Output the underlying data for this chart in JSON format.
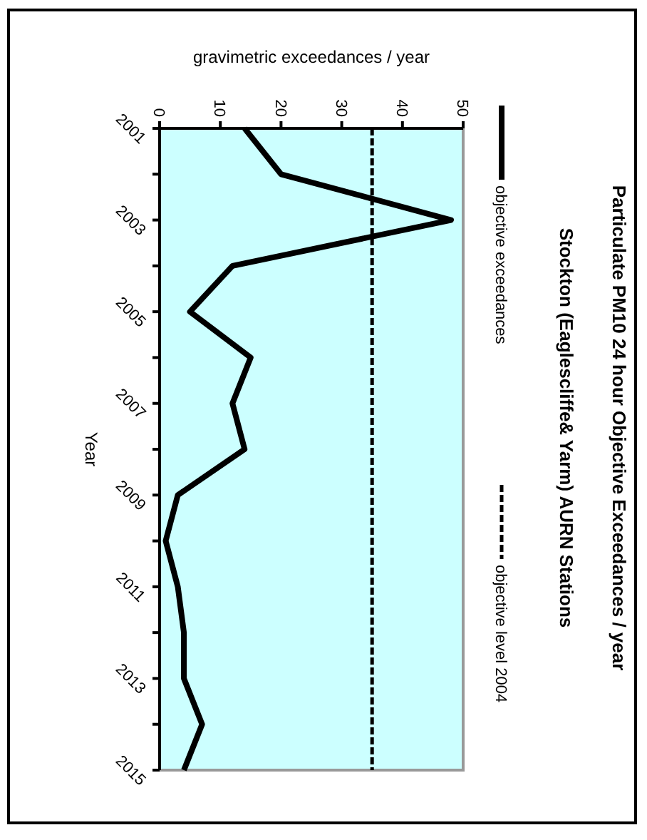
{
  "chart_data": {
    "type": "line",
    "orientation": "horizontal",
    "title": "Particulate PM10 24 hour Objective Exceedances / year",
    "subtitle": "Stockton (Eaglescliffe& Yarm) AURN Stations",
    "xlabel": "gravimetric exceedances / year",
    "ylabel": "Year",
    "x": [
      2001,
      2002,
      2003,
      2004,
      2005,
      2006,
      2007,
      2008,
      2009,
      2010,
      2011,
      2012,
      2013,
      2014,
      2015
    ],
    "series": [
      {
        "name": "objective exceedances",
        "color": "#000000",
        "values": [
          14,
          20,
          48,
          12,
          5,
          15,
          12,
          14,
          3,
          1,
          3,
          4,
          4,
          7,
          4
        ]
      },
      {
        "name": "objective level 2004",
        "color": "#000000",
        "line_style": "dashed",
        "values": [
          35,
          35,
          35,
          35,
          35,
          35,
          35,
          35,
          35,
          35,
          35,
          35,
          35,
          35,
          35
        ]
      }
    ],
    "ylim": [
      2015,
      2001
    ],
    "yticks": [
      2001,
      {
        "value": 2002,
        "label": null
      },
      2003,
      {
        "value": 2004,
        "label": null
      },
      2005,
      {
        "value": 2006,
        "label": null
      },
      2007,
      {
        "value": 2008,
        "label": null
      },
      2009,
      {
        "value": 2010,
        "label": null
      },
      2011,
      {
        "value": 2012,
        "label": null
      },
      2013,
      {
        "value": 2014,
        "label": null
      },
      2015
    ],
    "xlim": [
      0,
      50
    ],
    "xticks": [
      0,
      10,
      20,
      30,
      40,
      50
    ],
    "legend": "right",
    "marker": "none",
    "grid": false
  }
}
